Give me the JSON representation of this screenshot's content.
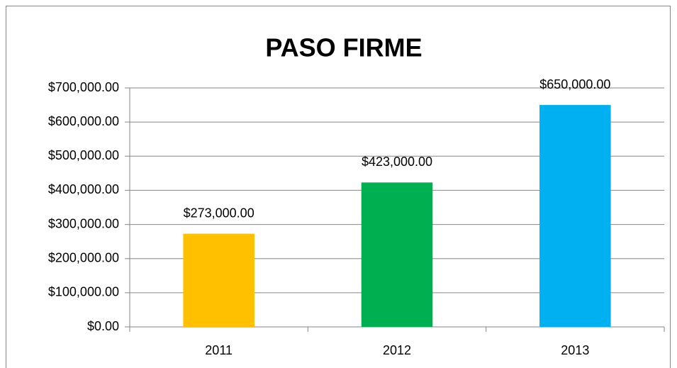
{
  "chart_data": {
    "type": "bar",
    "title": "PASO FIRME",
    "categories": [
      "2011",
      "2012",
      "2013"
    ],
    "values": [
      273000,
      423000,
      650000
    ],
    "value_labels": [
      "$273,000.00",
      "$423,000.00",
      "$650,000.00"
    ],
    "colors": [
      "#ffc000",
      "#00b050",
      "#00b0f0"
    ],
    "ylim": [
      0,
      700000
    ],
    "yticks": [
      {
        "value": 0,
        "label": "$0.00"
      },
      {
        "value": 100000,
        "label": "$100,000.00"
      },
      {
        "value": 200000,
        "label": "$200,000.00"
      },
      {
        "value": 300000,
        "label": "$300,000.00"
      },
      {
        "value": 400000,
        "label": "$400,000.00"
      },
      {
        "value": 500000,
        "label": "$500,000.00"
      },
      {
        "value": 600000,
        "label": "$600,000.00"
      },
      {
        "value": 700000,
        "label": "$700,000.00"
      }
    ],
    "grid": true
  }
}
